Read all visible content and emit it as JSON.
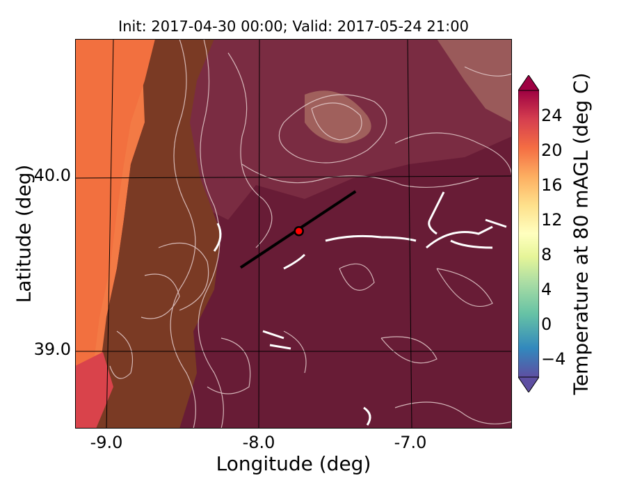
{
  "title": "Init: 2017-04-30 00:00; Valid: 2017-05-24 21:00",
  "xaxis": {
    "label": "Longitude (deg)",
    "ticks": [
      "-9.0",
      "-8.0",
      "-7.0"
    ],
    "tick_values": [
      -9.0,
      -8.0,
      -7.0
    ],
    "range": [
      -9.2,
      -6.35
    ]
  },
  "yaxis": {
    "label": "Latitude (deg)",
    "ticks": [
      "40.0",
      "39.0"
    ],
    "tick_values": [
      40.0,
      39.0
    ],
    "range": [
      38.55,
      40.8
    ]
  },
  "colorbar": {
    "label": "Temperature at 80 mAGL (deg C)",
    "ticks": [
      "24",
      "20",
      "16",
      "12",
      "8",
      "4",
      "0",
      "−4"
    ],
    "tick_values": [
      24,
      20,
      16,
      12,
      8,
      4,
      0,
      -4
    ],
    "range": [
      -6,
      27
    ],
    "colormap": "Spectral_r",
    "colors": [
      "#5e4fa2",
      "#3288bd",
      "#66c2a5",
      "#abdda4",
      "#e6f598",
      "#ffffbf",
      "#fee08b",
      "#fdae61",
      "#f46d43",
      "#d53e4f",
      "#9e0142"
    ]
  },
  "transect": {
    "lon": [
      -8.12,
      -7.37
    ],
    "lat": [
      39.48,
      39.92
    ]
  },
  "marker": {
    "lon": -7.74,
    "lat": 39.69,
    "color": "#ff0000"
  },
  "colors": {
    "coast": "#f2703f",
    "land_near": "#7a3a22",
    "inland": "#6d1c36",
    "contour": "#e8d0d0"
  }
}
